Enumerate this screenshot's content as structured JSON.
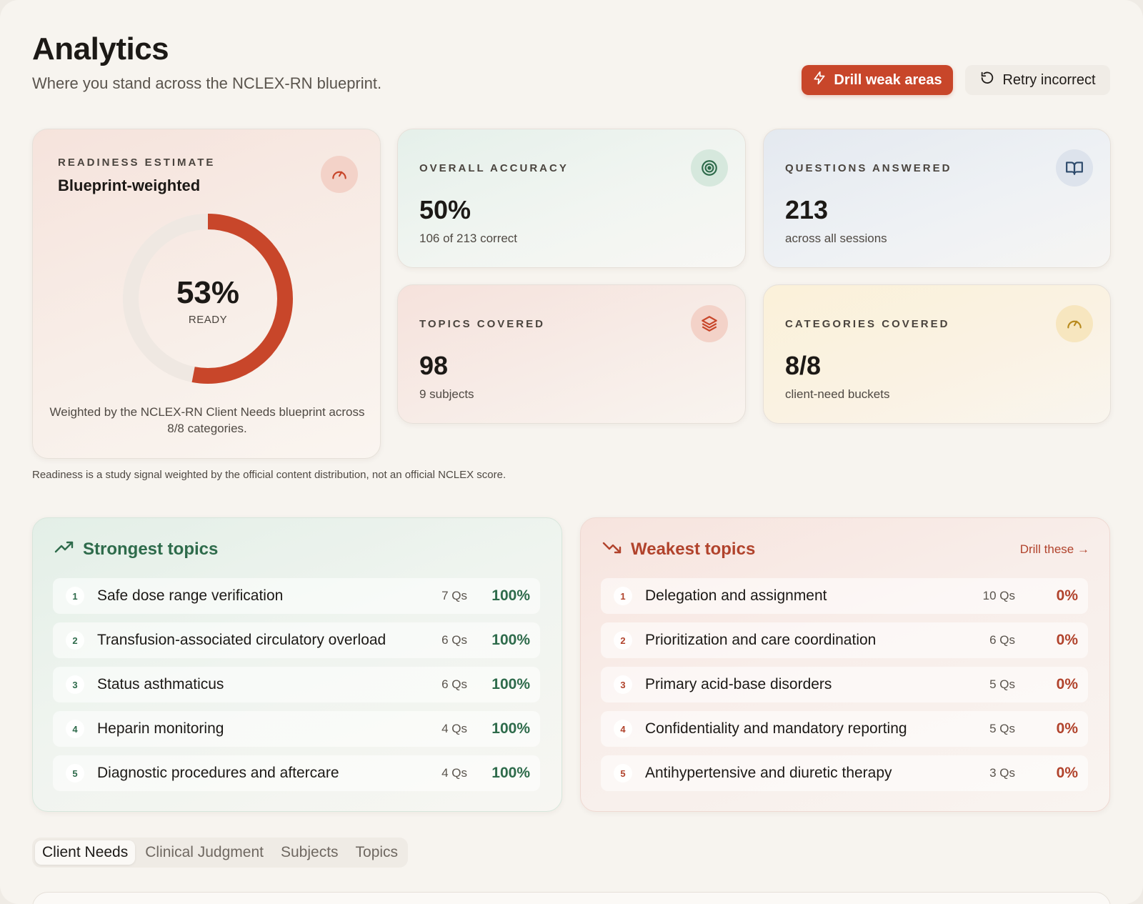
{
  "header": {
    "title": "Analytics",
    "subtitle": "Where you stand across the NCLEX-RN blueprint."
  },
  "actions": {
    "drill_label": "Drill weak areas",
    "retry_label": "Retry incorrect"
  },
  "readiness": {
    "kicker": "READINESS ESTIMATE",
    "subtitle": "Blueprint-weighted",
    "value": "53%",
    "fraction": 0.53,
    "label": "READY",
    "footnote": "Weighted by the NCLEX-RN Client Needs blueprint across 8/8 categories.",
    "icon": "gauge-icon"
  },
  "stats": {
    "accuracy": {
      "kicker": "OVERALL ACCURACY",
      "value": "50%",
      "detail": "106 of 213 correct",
      "icon": "target-icon"
    },
    "answered": {
      "kicker": "QUESTIONS ANSWERED",
      "value": "213",
      "detail": "across all sessions",
      "icon": "book-icon"
    },
    "topics": {
      "kicker": "TOPICS COVERED",
      "value": "98",
      "detail": "9 subjects",
      "icon": "layers-icon"
    },
    "categories": {
      "kicker": "CATEGORIES COVERED",
      "value": "8/8",
      "detail": "client-need buckets",
      "icon": "gauge-icon"
    }
  },
  "disclaimer": "Readiness is a study signal weighted by the official content distribution, not an official NCLEX score.",
  "strongest": {
    "title": "Strongest topics",
    "items": [
      {
        "rank": "1",
        "name": "Safe dose range verification",
        "qs": "7 Qs",
        "pct": "100%"
      },
      {
        "rank": "2",
        "name": "Transfusion-associated circulatory overload",
        "qs": "6 Qs",
        "pct": "100%"
      },
      {
        "rank": "3",
        "name": "Status asthmaticus",
        "qs": "6 Qs",
        "pct": "100%"
      },
      {
        "rank": "4",
        "name": "Heparin monitoring",
        "qs": "4 Qs",
        "pct": "100%"
      },
      {
        "rank": "5",
        "name": "Diagnostic procedures and aftercare",
        "qs": "4 Qs",
        "pct": "100%"
      }
    ]
  },
  "weakest": {
    "title": "Weakest topics",
    "link": "Drill these →",
    "items": [
      {
        "rank": "1",
        "name": "Delegation and assignment",
        "qs": "10 Qs",
        "pct": "0%"
      },
      {
        "rank": "2",
        "name": "Prioritization and care coordination",
        "qs": "6 Qs",
        "pct": "0%"
      },
      {
        "rank": "3",
        "name": "Primary acid-base disorders",
        "qs": "5 Qs",
        "pct": "0%"
      },
      {
        "rank": "4",
        "name": "Confidentiality and mandatory reporting",
        "qs": "5 Qs",
        "pct": "0%"
      },
      {
        "rank": "5",
        "name": "Antihypertensive and diuretic therapy",
        "qs": "3 Qs",
        "pct": "0%"
      }
    ]
  },
  "tabs": [
    {
      "label": "Client Needs",
      "active": true
    },
    {
      "label": "Clinical Judgment",
      "active": false
    },
    {
      "label": "Subjects",
      "active": false
    },
    {
      "label": "Topics",
      "active": false
    }
  ],
  "colors": {
    "accent": "#c8462a",
    "strong": "#2e6b4b",
    "weak": "#b1432c"
  }
}
